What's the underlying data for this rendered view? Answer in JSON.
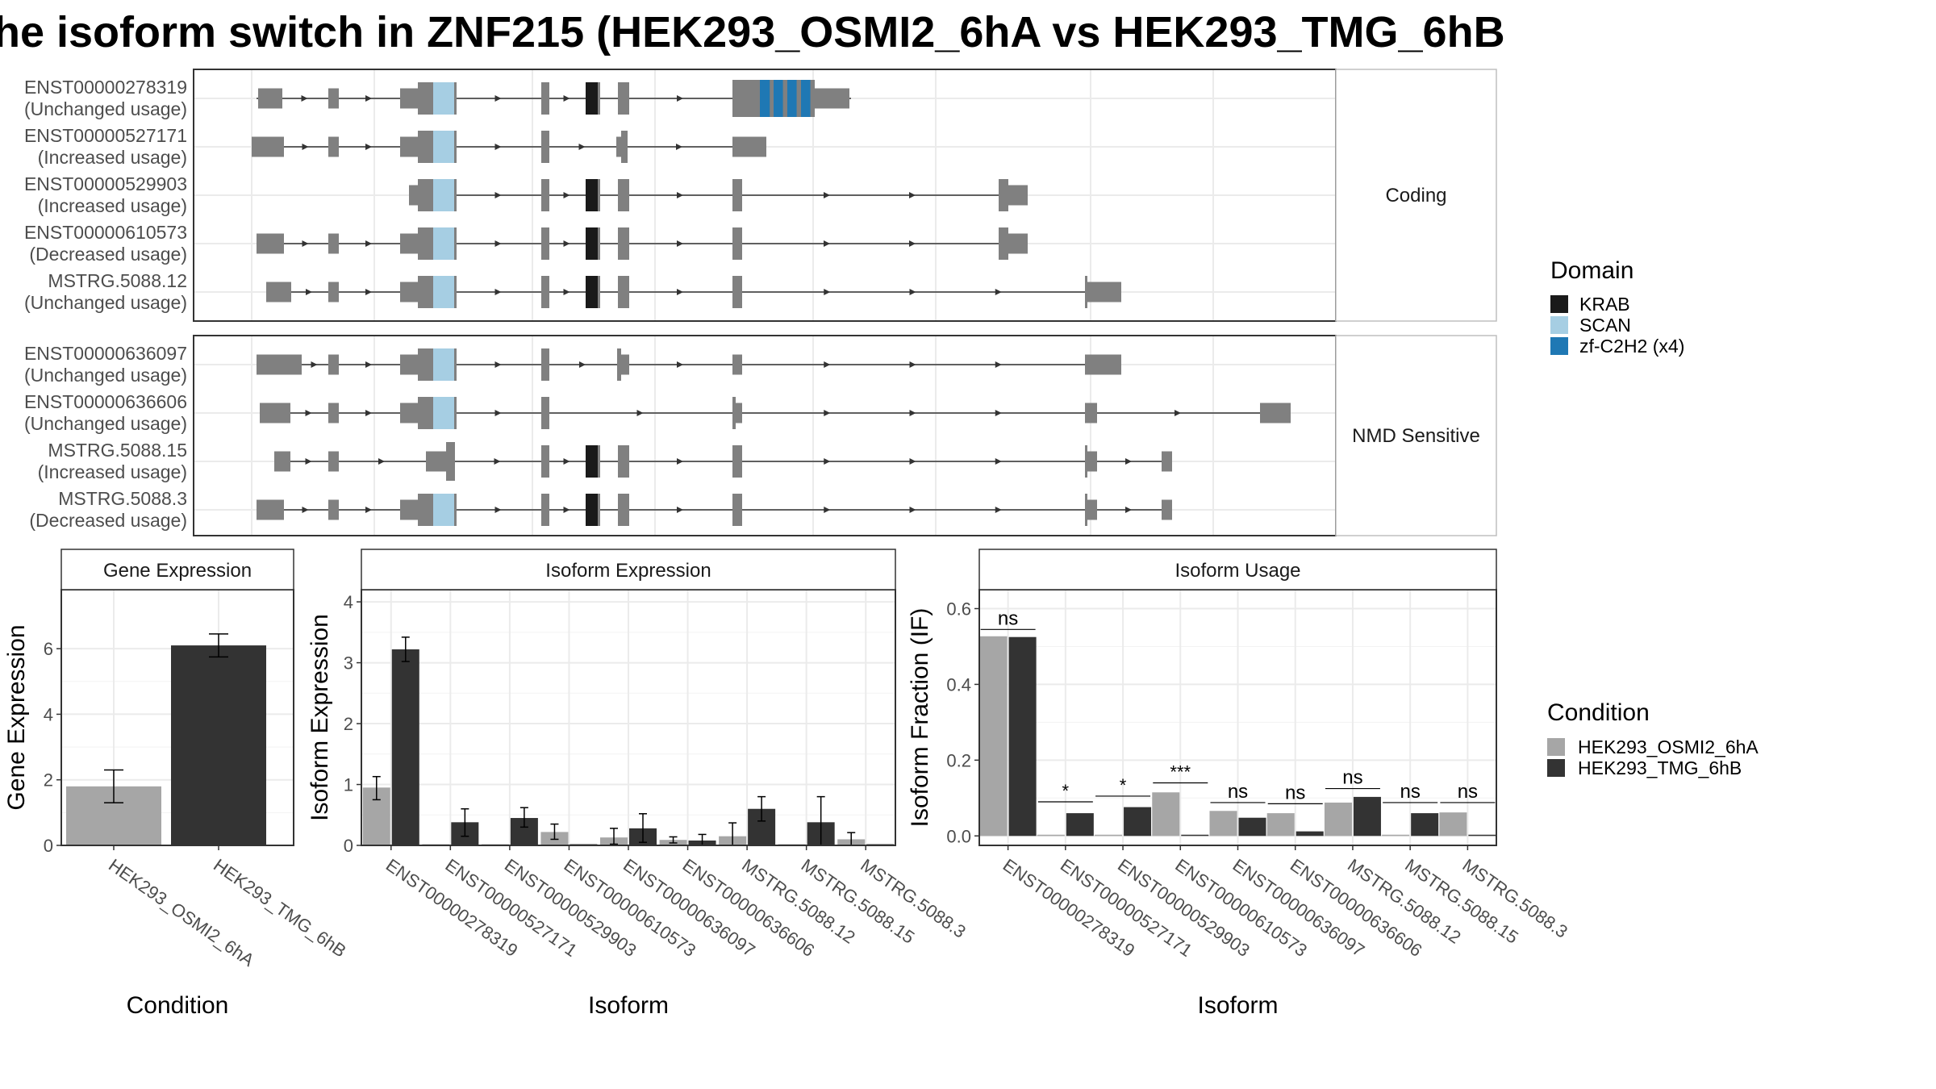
{
  "title": "he isoform switch in ZNF215 (HEK293_OSMI2_6hA vs HEK293_TMG_6hB",
  "colors": {
    "exon": "#808080",
    "KRAB": "#1a1a1a",
    "SCAN": "#a6cee3",
    "zf": "#1f78b4",
    "cond1": "#a6a6a6",
    "cond2": "#333333",
    "grid": "#ebebeb",
    "panel_border": "#333333",
    "strip_bg": "#ffffff"
  },
  "structure": {
    "panels": [
      {
        "label": "Coding",
        "isoforms": [
          {
            "id": "ENST00000278319",
            "usage": "(Unchanged usage)"
          },
          {
            "id": "ENST00000527171",
            "usage": "(Increased usage)"
          },
          {
            "id": "ENST00000529903",
            "usage": "(Increased usage)"
          },
          {
            "id": "ENST00000610573",
            "usage": "(Decreased usage)"
          },
          {
            "id": "MSTRG.5088.12",
            "usage": "(Unchanged usage)"
          }
        ]
      },
      {
        "label": "NMD Sensitive",
        "isoforms": [
          {
            "id": "ENST00000636097",
            "usage": "(Unchanged usage)"
          },
          {
            "id": "ENST00000636606",
            "usage": "(Unchanged usage)"
          },
          {
            "id": "MSTRG.5088.15",
            "usage": "(Increased usage)"
          },
          {
            "id": "MSTRG.5088.3",
            "usage": "(Decreased usage)"
          }
        ]
      }
    ],
    "domain_legend": {
      "title": "Domain",
      "items": [
        {
          "label": "KRAB",
          "color_key": "KRAB"
        },
        {
          "label": "SCAN",
          "color_key": "SCAN"
        },
        {
          "label": "zf-C2H2 (x4)",
          "color_key": "zf"
        }
      ]
    }
  },
  "chart_data": [
    {
      "type": "bar",
      "title": "Gene Expression",
      "xlabel": "Condition",
      "ylabel": "Gene Expression",
      "categories": [
        "HEK293_OSMI2_6hA",
        "HEK293_TMG_6hB"
      ],
      "values": [
        1.8,
        6.1
      ],
      "errors": [
        [
          1.3,
          2.3
        ],
        [
          5.75,
          6.45
        ]
      ],
      "ylim": [
        0,
        7.8
      ],
      "yticks": [
        "0",
        "2",
        "4",
        "6"
      ],
      "grid": true
    },
    {
      "type": "bar",
      "title": "Isoform Expression",
      "xlabel": "Isoform",
      "ylabel": "Isoform Expression",
      "categories": [
        "ENST00000278319",
        "ENST00000527171",
        "ENST00000529903",
        "ENST00000610573",
        "ENST00000636097",
        "ENST00000636606",
        "MSTRG.5088.12",
        "MSTRG.5088.15",
        "MSTRG.5088.3"
      ],
      "series": [
        {
          "name": "HEK293_OSMI2_6hA",
          "values": [
            0.95,
            0.0,
            0.0,
            0.22,
            0.13,
            0.09,
            0.15,
            0.0,
            0.1
          ],
          "errors": [
            [
              0.75,
              1.13
            ],
            null,
            null,
            [
              0.1,
              0.35
            ],
            [
              0.02,
              0.28
            ],
            [
              0.04,
              0.14
            ],
            [
              0.0,
              0.37
            ],
            null,
            [
              0.0,
              0.21
            ]
          ]
        },
        {
          "name": "HEK293_TMG_6hB",
          "values": [
            3.22,
            0.38,
            0.45,
            0.0,
            0.28,
            0.08,
            0.6,
            0.38,
            0.0
          ],
          "errors": [
            [
              3.02,
              3.42
            ],
            [
              0.15,
              0.6
            ],
            [
              0.3,
              0.62
            ],
            null,
            [
              0.05,
              0.52
            ],
            [
              0.0,
              0.18
            ],
            [
              0.4,
              0.8
            ],
            [
              0.0,
              0.8
            ],
            null
          ]
        }
      ],
      "ylim": [
        0,
        4.2
      ],
      "yticks": [
        "0",
        "1",
        "2",
        "3",
        "4"
      ],
      "grid": true
    },
    {
      "type": "bar",
      "title": "Isoform Usage",
      "xlabel": "Isoform",
      "ylabel": "Isoform Fraction (IF)",
      "categories": [
        "ENST00000278319",
        "ENST00000527171",
        "ENST00000529903",
        "ENST00000610573",
        "ENST00000636097",
        "ENST00000636606",
        "MSTRG.5088.12",
        "MSTRG.5088.15",
        "MSTRG.5088.3"
      ],
      "series": [
        {
          "name": "HEK293_OSMI2_6hA",
          "values": [
            0.527,
            0.0,
            0.0,
            0.115,
            0.066,
            0.06,
            0.088,
            0.0,
            0.062
          ]
        },
        {
          "name": "HEK293_TMG_6hB",
          "values": [
            0.525,
            0.06,
            0.076,
            0.0,
            0.048,
            0.012,
            0.103,
            0.06,
            0.0
          ]
        }
      ],
      "significance": [
        "ns",
        "*",
        "*",
        "***",
        "ns",
        "ns",
        "ns",
        "ns",
        "ns"
      ],
      "sig_levels": [
        0.545,
        0.09,
        0.105,
        0.14,
        0.088,
        0.085,
        0.125,
        0.088,
        0.088
      ],
      "ylim": [
        -0.025,
        0.65
      ],
      "yticks": [
        "0.0",
        "0.2",
        "0.4",
        "0.6"
      ],
      "grid": true
    }
  ],
  "condition_legend": {
    "title": "Condition",
    "items": [
      {
        "label": "HEK293_OSMI2_6hA",
        "color_key": "cond1"
      },
      {
        "label": "HEK293_TMG_6hB",
        "color_key": "cond2"
      }
    ]
  }
}
